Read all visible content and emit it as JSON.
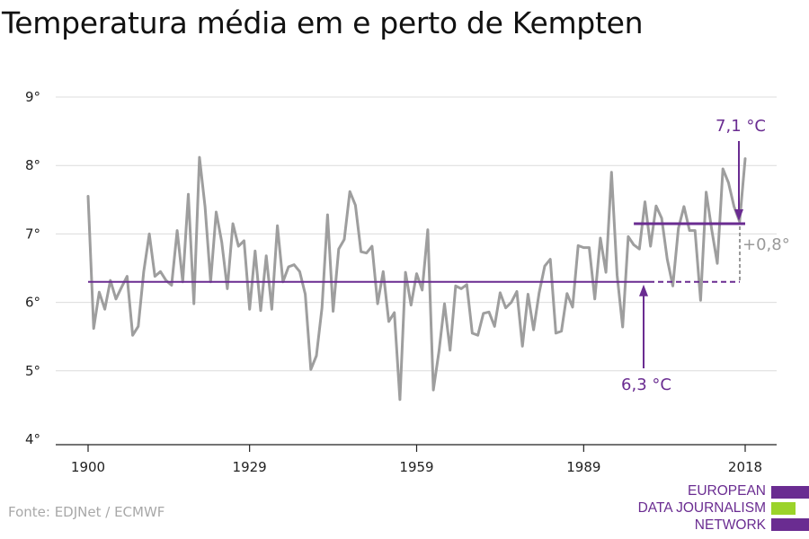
{
  "title": "Temperatura média em e perto de Kempten",
  "source": "Fonte: EDJNet / ECMWF",
  "logo": {
    "lines": [
      "EUROPEAN",
      "DATA JOURNALISM",
      "NETWORK"
    ],
    "colors": [
      "#6a2c91",
      "#9bd32a",
      "#6a2c91"
    ]
  },
  "chart_data": {
    "type": "line",
    "title": "Temperatura média em e perto de Kempten",
    "xlabel": "",
    "ylabel": "",
    "xlim": [
      1900,
      2018
    ],
    "ylim": [
      4,
      9
    ],
    "x_ticks": [
      1900,
      1929,
      1959,
      1989,
      2018
    ],
    "y_ticks": [
      {
        "value": 4,
        "label": "4°"
      },
      {
        "value": 5,
        "label": "5°"
      },
      {
        "value": 6,
        "label": "6°"
      },
      {
        "value": 7,
        "label": "7°"
      },
      {
        "value": 8,
        "label": "8°"
      },
      {
        "value": 9,
        "label": "9°"
      }
    ],
    "grid": true,
    "line_color": "#9e9e9e",
    "accent_color": "#6a2c91",
    "series": [
      {
        "x": [
          1900,
          1901,
          1902,
          1903,
          1904,
          1905,
          1906,
          1907,
          1908,
          1909,
          1910,
          1911,
          1912,
          1913,
          1914,
          1915,
          1916,
          1917,
          1918,
          1919,
          1920,
          1921,
          1922,
          1923,
          1924,
          1925,
          1926,
          1927,
          1928,
          1929,
          1930,
          1931,
          1932,
          1933,
          1934,
          1935,
          1936,
          1937,
          1938,
          1939,
          1940,
          1941,
          1942,
          1943,
          1944,
          1945,
          1946,
          1947,
          1948,
          1949,
          1950,
          1951,
          1952,
          1953,
          1954,
          1955,
          1956,
          1957,
          1958,
          1959,
          1960,
          1961,
          1962,
          1963,
          1964,
          1965,
          1966,
          1967,
          1968,
          1969,
          1970,
          1971,
          1972,
          1973,
          1974,
          1975,
          1976,
          1977,
          1978,
          1979,
          1980,
          1981,
          1982,
          1983,
          1984,
          1985,
          1986,
          1987,
          1988,
          1989,
          1990,
          1991,
          1992,
          1993,
          1994,
          1995,
          1996,
          1997,
          1998,
          1999,
          2000,
          2001,
          2002,
          2003,
          2004,
          2005,
          2006,
          2007,
          2008,
          2009,
          2010,
          2011,
          2012,
          2013,
          2014,
          2015,
          2016,
          2017,
          2018
        ],
        "values": [
          7.55,
          5.62,
          6.15,
          5.9,
          6.32,
          6.05,
          6.22,
          6.38,
          5.52,
          5.65,
          6.45,
          7.0,
          6.38,
          6.45,
          6.32,
          6.25,
          7.05,
          6.3,
          7.58,
          5.98,
          8.12,
          7.4,
          6.3,
          7.32,
          6.88,
          6.2,
          7.15,
          6.82,
          6.9,
          5.9,
          6.75,
          5.88,
          6.68,
          5.9,
          7.12,
          6.3,
          6.52,
          6.55,
          6.45,
          6.12,
          5.02,
          5.22,
          5.92,
          7.28,
          5.87,
          6.78,
          6.92,
          7.62,
          7.42,
          6.74,
          6.72,
          6.82,
          5.98,
          6.45,
          5.72,
          5.85,
          4.58,
          6.44,
          5.96,
          6.42,
          6.18,
          7.06,
          4.72,
          5.28,
          5.98,
          5.3,
          6.24,
          6.2,
          6.26,
          5.55,
          5.52,
          5.84,
          5.86,
          5.65,
          6.14,
          5.92,
          6.0,
          6.16,
          5.36,
          6.12,
          5.6,
          6.14,
          6.53,
          6.63,
          5.55,
          5.58,
          6.13,
          5.93,
          6.83,
          6.8,
          6.8,
          6.05,
          6.94,
          6.44,
          7.9,
          6.4,
          5.64,
          6.96,
          6.84,
          6.78,
          7.47,
          6.82,
          7.41,
          7.23,
          6.63,
          6.24,
          7.08,
          7.4,
          7.05,
          7.05,
          6.03,
          7.61,
          7.06,
          6.57,
          7.95,
          7.75,
          7.4,
          7.18,
          8.1
        ]
      }
    ],
    "annotations": {
      "baseline": {
        "value": 6.3,
        "label": "6,3 °C",
        "x_start": 1900,
        "x_end": 2018
      },
      "recent": {
        "value": 7.15,
        "label": "7,1 °C",
        "x_start": 1998,
        "x_end": 2018
      },
      "difference_label": "+0,8°"
    }
  }
}
